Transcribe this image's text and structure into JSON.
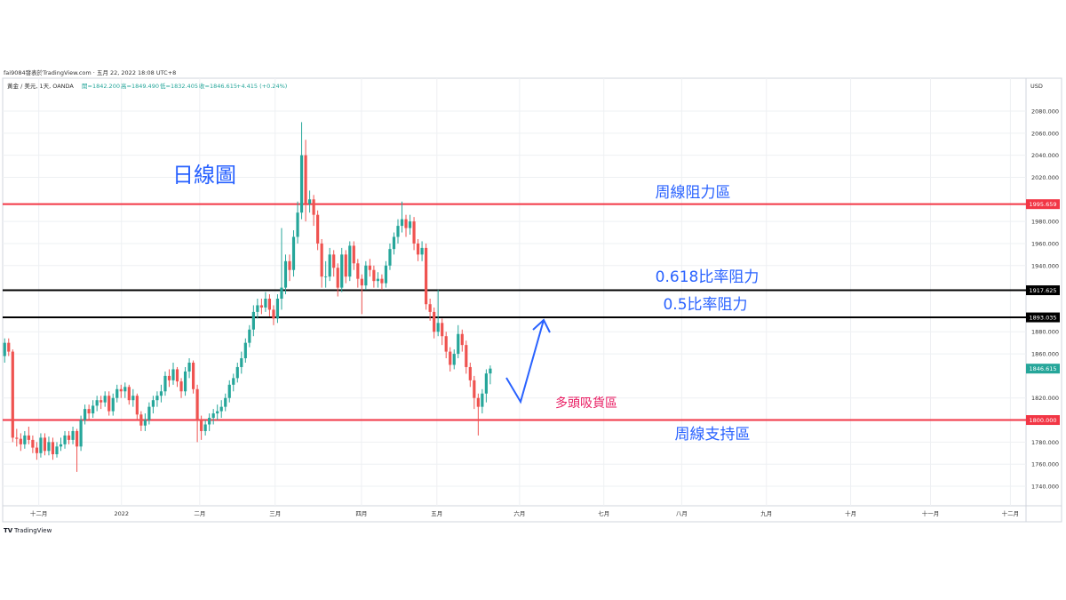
{
  "header": {
    "byline": "fai9084發表於TradingView.com · 五月 22, 2022 18:08 UTC+8",
    "footer": "TradingView"
  },
  "chart_data": {
    "type": "candlestick",
    "legend": {
      "symbol": "黃金 / 美元, 1天, OANDA",
      "open": "開=1842.200",
      "high": "高=1849.490",
      "low": "低=1832.405",
      "close": "收=1846.615",
      "change": "+4.415 (+0.24%)"
    },
    "currency": "USD",
    "up_color": "#26a69a",
    "down_color": "#ef5350",
    "series": [
      {
        "name": "XAUUSD",
        "open": [
          1858,
          1870,
          1862,
          1784,
          1783,
          1778,
          1786,
          1782,
          1775,
          1770,
          1784,
          1772,
          1780,
          1769,
          1776,
          1778,
          1786,
          1782,
          1790,
          1776,
          1800,
          1810,
          1806,
          1813,
          1818,
          1816,
          1822,
          1808,
          1820,
          1828,
          1826,
          1830,
          1818,
          1822,
          1805,
          1795,
          1800,
          1812,
          1818,
          1822,
          1826,
          1840,
          1836,
          1846,
          1835,
          1826,
          1844,
          1852,
          1828,
          1800,
          1790,
          1796,
          1802,
          1806,
          1808,
          1812,
          1820,
          1832,
          1838,
          1848,
          1856,
          1870,
          1882,
          1898,
          1904,
          1902,
          1910,
          1900,
          1892,
          1910,
          1920,
          1944,
          1936,
          1966,
          1988,
          2040,
          1996,
          2000,
          1986,
          1960,
          1930,
          1930,
          1950,
          1938,
          1920,
          1950,
          1930,
          1958,
          1942,
          1928,
          1922,
          1940,
          1936,
          1926,
          1928,
          1924,
          1940,
          1955,
          1966,
          1976,
          1982,
          1974,
          1980,
          1960,
          1950,
          1956,
          1905,
          1898,
          1880,
          1888,
          1876,
          1862,
          1850,
          1860,
          1878,
          1868,
          1848,
          1836,
          1820,
          1812,
          1824,
          1842.2
        ],
        "high": [
          1874,
          1874,
          1864,
          1792,
          1788,
          1790,
          1794,
          1786,
          1780,
          1788,
          1788,
          1785,
          1784,
          1780,
          1784,
          1790,
          1790,
          1794,
          1792,
          1804,
          1814,
          1814,
          1818,
          1822,
          1822,
          1826,
          1826,
          1824,
          1832,
          1832,
          1834,
          1832,
          1828,
          1824,
          1808,
          1806,
          1816,
          1822,
          1826,
          1832,
          1844,
          1846,
          1852,
          1848,
          1838,
          1848,
          1856,
          1854,
          1832,
          1804,
          1800,
          1806,
          1810,
          1814,
          1818,
          1824,
          1836,
          1842,
          1852,
          1862,
          1874,
          1886,
          1904,
          1910,
          1910,
          1916,
          1914,
          1904,
          1914,
          1974,
          1950,
          1950,
          1972,
          1998,
          2070,
          2054,
          2008,
          2004,
          1990,
          1964,
          1944,
          1956,
          1954,
          1942,
          1956,
          1954,
          1962,
          1962,
          1946,
          1932,
          1944,
          1946,
          1940,
          1934,
          1932,
          1944,
          1960,
          1970,
          1982,
          1998,
          1986,
          1986,
          1984,
          1964,
          1962,
          1960,
          1910,
          1902,
          1918,
          1892,
          1880,
          1866,
          1864,
          1886,
          1882,
          1872,
          1852,
          1840,
          1824,
          1828,
          1846,
          1849.49
        ],
        "low": [
          1852,
          1858,
          1780,
          1776,
          1772,
          1774,
          1778,
          1770,
          1764,
          1766,
          1768,
          1768,
          1764,
          1766,
          1772,
          1774,
          1778,
          1778,
          1753,
          1772,
          1796,
          1800,
          1802,
          1808,
          1810,
          1812,
          1804,
          1804,
          1816,
          1820,
          1820,
          1814,
          1812,
          1800,
          1790,
          1790,
          1796,
          1806,
          1812,
          1816,
          1822,
          1830,
          1832,
          1830,
          1820,
          1822,
          1838,
          1824,
          1780,
          1782,
          1786,
          1790,
          1796,
          1800,
          1802,
          1808,
          1816,
          1826,
          1834,
          1842,
          1852,
          1866,
          1876,
          1892,
          1896,
          1898,
          1894,
          1886,
          1888,
          1900,
          1914,
          1926,
          1930,
          1960,
          1982,
          1980,
          1988,
          1976,
          1954,
          1920,
          1920,
          1926,
          1930,
          1912,
          1916,
          1924,
          1926,
          1936,
          1920,
          1896,
          1918,
          1930,
          1920,
          1920,
          1918,
          1920,
          1936,
          1950,
          1960,
          1970,
          1966,
          1968,
          1954,
          1944,
          1944,
          1900,
          1890,
          1874,
          1876,
          1868,
          1856,
          1844,
          1846,
          1856,
          1862,
          1842,
          1830,
          1810,
          1786,
          1806,
          1816,
          1832.405
        ],
        "close": [
          1870,
          1862,
          1784,
          1783,
          1778,
          1786,
          1782,
          1775,
          1770,
          1784,
          1772,
          1780,
          1769,
          1776,
          1778,
          1786,
          1782,
          1790,
          1776,
          1800,
          1810,
          1806,
          1813,
          1818,
          1816,
          1822,
          1808,
          1820,
          1828,
          1826,
          1830,
          1818,
          1822,
          1805,
          1795,
          1800,
          1812,
          1818,
          1822,
          1826,
          1840,
          1836,
          1846,
          1835,
          1826,
          1844,
          1852,
          1828,
          1800,
          1790,
          1796,
          1802,
          1806,
          1808,
          1812,
          1820,
          1832,
          1838,
          1848,
          1856,
          1870,
          1882,
          1898,
          1904,
          1902,
          1910,
          1900,
          1892,
          1910,
          1920,
          1944,
          1936,
          1966,
          1988,
          2040,
          1996,
          2000,
          1986,
          1960,
          1930,
          1930,
          1950,
          1938,
          1920,
          1950,
          1930,
          1958,
          1942,
          1928,
          1922,
          1940,
          1936,
          1926,
          1928,
          1924,
          1940,
          1955,
          1966,
          1976,
          1982,
          1974,
          1980,
          1960,
          1950,
          1956,
          1905,
          1898,
          1880,
          1888,
          1876,
          1862,
          1850,
          1860,
          1878,
          1868,
          1848,
          1836,
          1820,
          1812,
          1824,
          1842.2,
          1846.615
        ]
      }
    ],
    "xlim": [
      -0.5,
      254.5
    ],
    "xticks": [
      {
        "value": 8.5,
        "label": "十二月"
      },
      {
        "value": 29.1,
        "label": "2022"
      },
      {
        "value": 48.6,
        "label": "二月"
      },
      {
        "value": 67.4,
        "label": "三月"
      },
      {
        "value": 88.9,
        "label": "四月"
      },
      {
        "value": 107.7,
        "label": "五月"
      },
      {
        "value": 128.3,
        "label": "六月"
      },
      {
        "value": 149.3,
        "label": "七月"
      },
      {
        "value": 168.7,
        "label": "八月"
      },
      {
        "value": 189.8,
        "label": "九月"
      },
      {
        "value": 210.8,
        "label": "十月"
      },
      {
        "value": 230.7,
        "label": "十一月"
      },
      {
        "value": 250.6,
        "label": "十二月"
      }
    ],
    "ylim": [
      1709.4,
      2109.8
    ],
    "yticks": [
      {
        "value": 1740,
        "label": "1740.000"
      },
      {
        "value": 1760,
        "label": "1760.000"
      },
      {
        "value": 1780,
        "label": "1780.000"
      },
      {
        "value": 1820,
        "label": "1820.000"
      },
      {
        "value": 1860,
        "label": "1860.000"
      },
      {
        "value": 1880,
        "label": "1880.000"
      },
      {
        "value": 1940,
        "label": "1940.000"
      },
      {
        "value": 1960,
        "label": "1960.000"
      },
      {
        "value": 1980,
        "label": "1980.000"
      },
      {
        "value": 2020,
        "label": "2020.000"
      },
      {
        "value": 2040,
        "label": "2040.000"
      },
      {
        "value": 2060,
        "label": "2060.000"
      },
      {
        "value": 2080,
        "label": "2080.000"
      }
    ],
    "grid": true,
    "levels": [
      {
        "value": 1995.659,
        "label": "1995.659",
        "color": "#f23645"
      },
      {
        "value": 1917.625,
        "label": "1917.625",
        "color": "#000000"
      },
      {
        "value": 1893.035,
        "label": "1893.035",
        "color": "#000000"
      },
      {
        "value": 1800,
        "label": "1800.000",
        "color": "#f23645"
      }
    ],
    "last_price": {
      "value": 1846.615,
      "label": "1846.615",
      "color": "#26a69a"
    },
    "annotations": [
      {
        "text": "日線圖",
        "color": "#2962ff"
      },
      {
        "text": "周線阻力區",
        "color": "#2962ff"
      },
      {
        "text": "0.618比率阻力",
        "color": "#2962ff"
      },
      {
        "text": "0.5比率阻力",
        "color": "#2962ff"
      },
      {
        "text": "多頭吸貨區",
        "color": "#e91e63"
      },
      {
        "text": "周線支持區",
        "color": "#2962ff"
      }
    ]
  }
}
